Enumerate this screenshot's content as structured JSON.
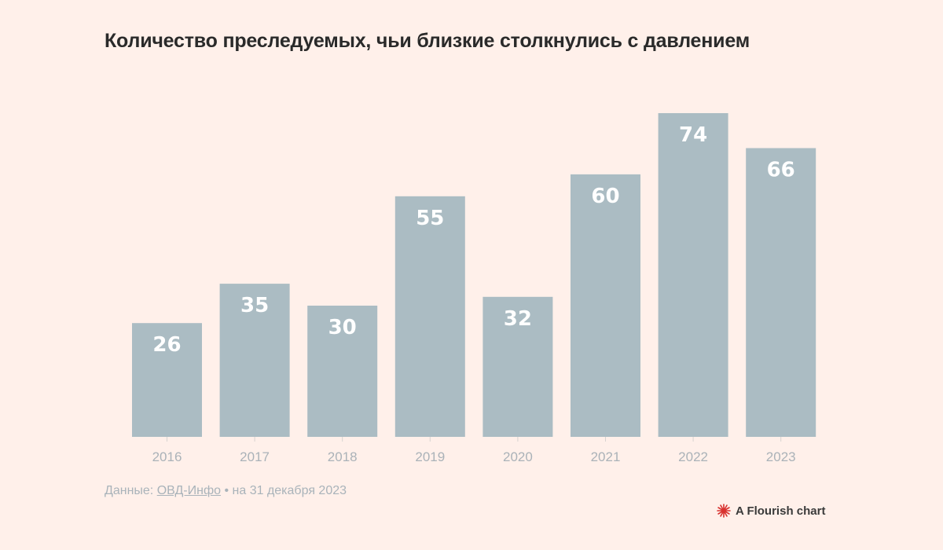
{
  "chart_data": {
    "type": "bar",
    "title": "Количество преследуемых, чьи близкие столкнулись с давлением",
    "categories": [
      "2016",
      "2017",
      "2018",
      "2019",
      "2020",
      "2021",
      "2022",
      "2023"
    ],
    "values": [
      26,
      35,
      30,
      55,
      32,
      60,
      74,
      66
    ],
    "data_labels": [
      "26",
      "35",
      "30",
      "55",
      "32",
      "60",
      "74",
      "66"
    ],
    "ylim": [
      0,
      74
    ],
    "grid": false,
    "legend": "none",
    "xlabel": "",
    "ylabel": "",
    "colors": {
      "bar": "#abbcc3",
      "background": "#fff0ea",
      "bar_label": "#ffffff",
      "tick_label": "#aab2b8"
    }
  },
  "footer": {
    "source_prefix": "Данные: ",
    "source_link": "ОВД-Инфо",
    "source_suffix": " • на 31 декабря 2023",
    "credit": "A Flourish chart",
    "credit_icon": "flourish-logo-icon",
    "credit_icon_color": "#d8322f"
  }
}
